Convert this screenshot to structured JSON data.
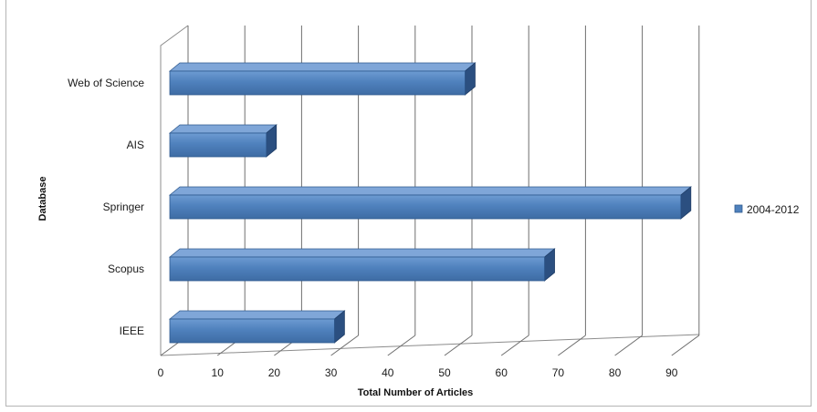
{
  "chart_data": {
    "type": "bar",
    "orientation": "horizontal",
    "style": "3d-clustered",
    "categories": [
      "Web of Science",
      "AIS",
      "Springer",
      "Scopus",
      "IEEE"
    ],
    "series": [
      {
        "name": "2004-2012",
        "values": [
          52,
          17,
          90,
          66,
          29
        ],
        "color": "#4f81bd"
      }
    ],
    "xlabel": "Total Number of Articles",
    "ylabel": "Database",
    "xlim": [
      0,
      90
    ],
    "xticks": [
      "0",
      "10",
      "20",
      "30",
      "40",
      "50",
      "60",
      "70",
      "80",
      "90"
    ],
    "grid": true,
    "legend_position": "right"
  }
}
